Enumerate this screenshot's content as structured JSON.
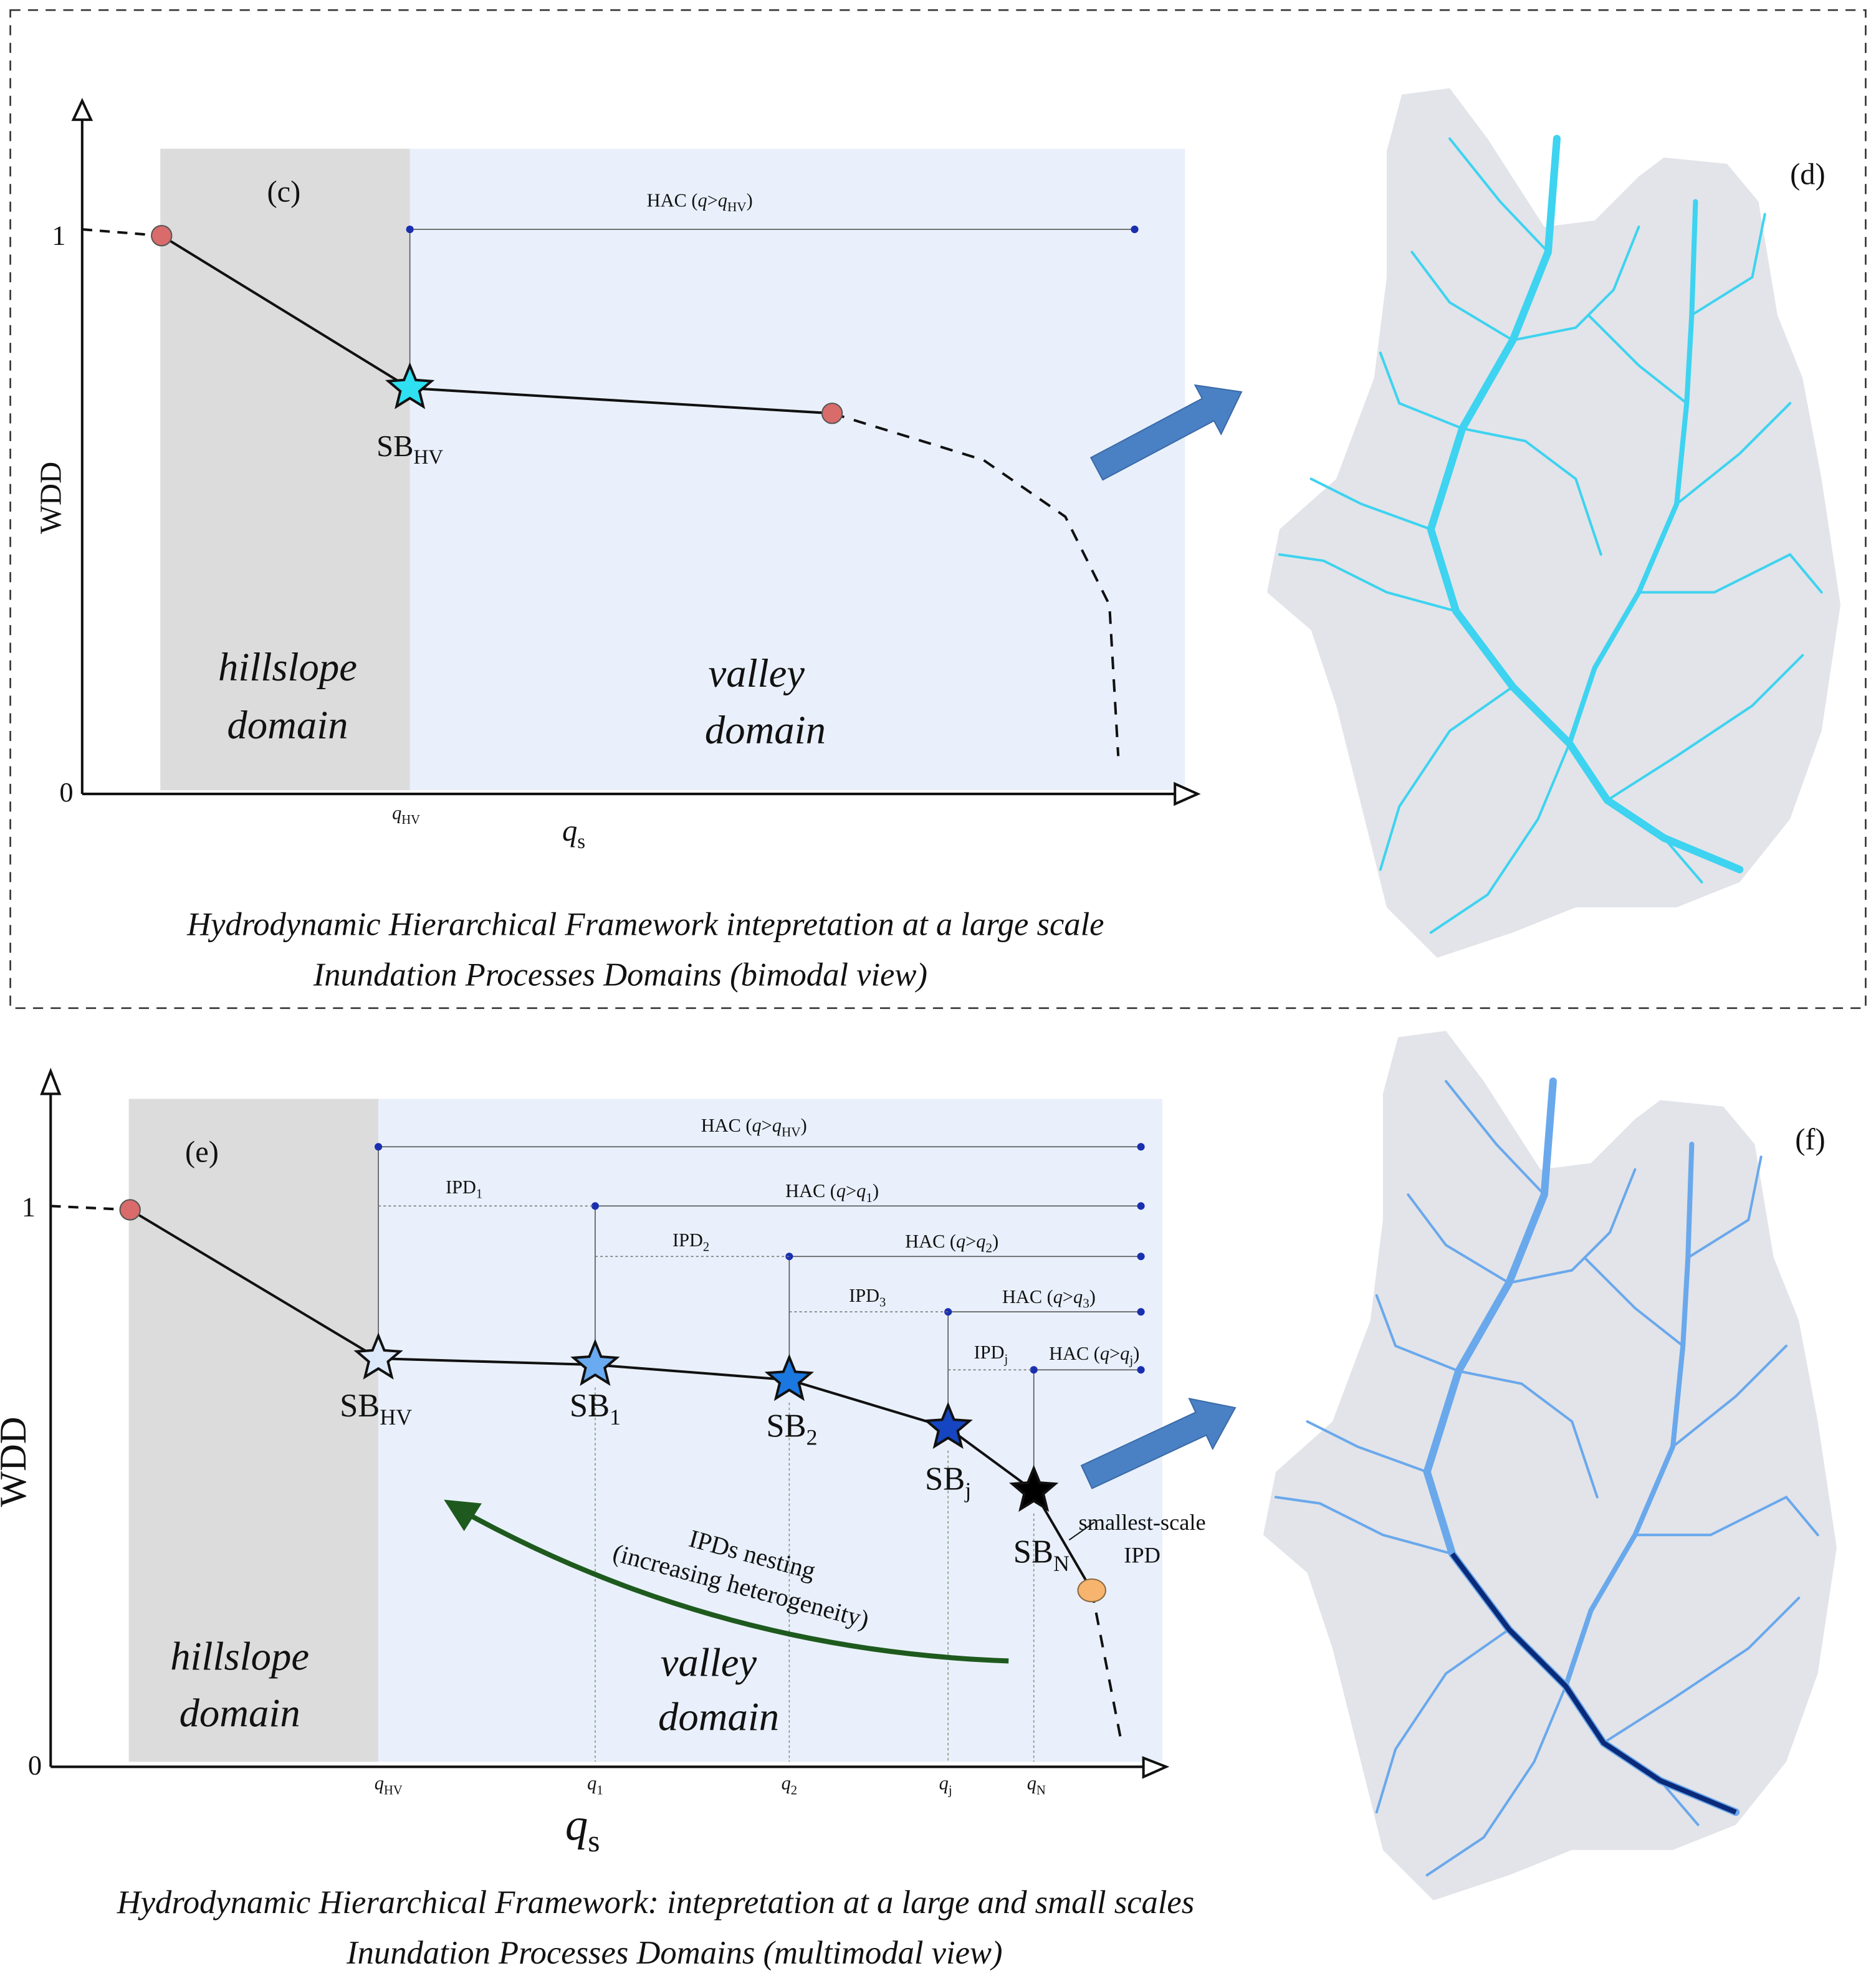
{
  "panel_c": {
    "label": "(c)",
    "y_axis_title": "WDD",
    "y_ticks": [
      "1",
      "0"
    ],
    "x_axis_title": {
      "main": "q",
      "sub": "s"
    },
    "x_ticks": [
      {
        "main": "q",
        "sub": "HV"
      }
    ],
    "hac_labels": [
      {
        "parts": [
          "HAC (",
          "q",
          ">",
          "q",
          "HV",
          ")"
        ]
      }
    ],
    "star_labels": [
      {
        "main": "SB",
        "sub": "HV"
      }
    ],
    "hillslope": [
      "hillslope",
      "domain"
    ],
    "valley": [
      "valley",
      "domain"
    ],
    "caption": [
      "Hydrodynamic Hierarchical Framework intepretation at a large scale",
      "Inundation Processes Domains (bimodal view)"
    ]
  },
  "panel_d": {
    "label": "(d)"
  },
  "panel_e": {
    "label": "(e)",
    "y_axis_title": "WDD",
    "y_ticks": [
      "1",
      "0"
    ],
    "x_axis_title": {
      "main": "q",
      "sub": "s"
    },
    "x_ticks": [
      {
        "main": "q",
        "sub": "HV"
      },
      {
        "main": "q",
        "sub": "1"
      },
      {
        "main": "q",
        "sub": "2"
      },
      {
        "main": "q",
        "sub": "j"
      },
      {
        "main": "q",
        "sub": "N"
      }
    ],
    "hac_labels": [
      {
        "parts": [
          "HAC (",
          "q",
          ">",
          "q",
          "HV",
          ")"
        ]
      },
      {
        "parts": [
          "HAC (",
          "q",
          ">",
          "q",
          "1",
          ")"
        ]
      },
      {
        "parts": [
          "HAC (",
          "q",
          ">",
          "q",
          "2",
          ")"
        ]
      },
      {
        "parts": [
          "HAC (",
          "q",
          ">",
          "q",
          "3",
          ")"
        ]
      },
      {
        "parts": [
          "HAC (",
          "q",
          ">",
          "q",
          "j",
          ")"
        ]
      }
    ],
    "ipd_labels": [
      {
        "main": "IPD",
        "sub": "1"
      },
      {
        "main": "IPD",
        "sub": "2"
      },
      {
        "main": "IPD",
        "sub": "3"
      },
      {
        "main": "IPD",
        "sub": "j"
      }
    ],
    "star_labels": [
      {
        "main": "SB",
        "sub": "HV"
      },
      {
        "main": "SB",
        "sub": "1"
      },
      {
        "main": "SB",
        "sub": "2"
      },
      {
        "main": "SB",
        "sub": "j"
      },
      {
        "main": "SB",
        "sub": "N"
      }
    ],
    "smallest_scale": [
      "smallest-scale",
      "IPD"
    ],
    "nesting": [
      "IPDs nesting",
      "(increasing heterogeneity)"
    ],
    "hillslope": [
      "hillslope",
      "domain"
    ],
    "valley": [
      "valley",
      "domain"
    ],
    "caption": [
      "Hydrodynamic Hierarchical Framework: intepretation at a large and small scales",
      "Inundation Processes Domains (multimodal view)"
    ]
  },
  "panel_f": {
    "label": "(f)"
  }
}
